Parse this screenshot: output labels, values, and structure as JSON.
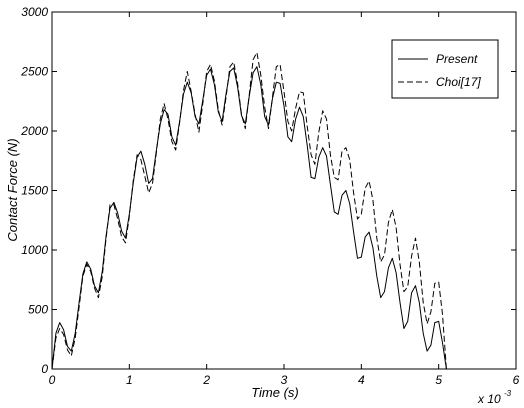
{
  "chart_data": {
    "type": "line",
    "title": "",
    "xlabel": "Time (s)",
    "ylabel": "Contact Force (N)",
    "x_multiplier_label": "x 10",
    "x_multiplier_exponent": "-3",
    "xlim": [
      0,
      6
    ],
    "ylim": [
      0,
      3000
    ],
    "x_ticks": [
      0,
      1,
      2,
      3,
      4,
      5,
      6
    ],
    "y_ticks": [
      0,
      500,
      1000,
      1500,
      2000,
      2500,
      3000
    ],
    "x_tick_labels": [
      "0",
      "1",
      "2",
      "3",
      "4",
      "5",
      "6"
    ],
    "y_tick_labels": [
      "0",
      "500",
      "1000",
      "1500",
      "2000",
      "2500",
      "3000"
    ],
    "grid": false,
    "legend_position": "top-right",
    "series": [
      {
        "name": "Present",
        "style": "solid",
        "color": "#000000",
        "x": [
          0,
          0.05,
          0.1,
          0.15,
          0.2,
          0.25,
          0.3,
          0.35,
          0.4,
          0.45,
          0.5,
          0.55,
          0.6,
          0.65,
          0.7,
          0.75,
          0.8,
          0.85,
          0.9,
          0.95,
          1.0,
          1.05,
          1.1,
          1.15,
          1.2,
          1.25,
          1.3,
          1.35,
          1.4,
          1.45,
          1.5,
          1.55,
          1.6,
          1.65,
          1.7,
          1.75,
          1.8,
          1.85,
          1.9,
          1.95,
          2.0,
          2.05,
          2.1,
          2.15,
          2.2,
          2.25,
          2.3,
          2.35,
          2.4,
          2.45,
          2.5,
          2.55,
          2.6,
          2.65,
          2.7,
          2.75,
          2.8,
          2.85,
          2.9,
          2.95,
          3.0,
          3.05,
          3.1,
          3.15,
          3.2,
          3.25,
          3.3,
          3.35,
          3.4,
          3.45,
          3.5,
          3.55,
          3.6,
          3.65,
          3.7,
          3.75,
          3.8,
          3.85,
          3.9,
          3.95,
          4.0,
          4.05,
          4.1,
          4.15,
          4.2,
          4.25,
          4.3,
          4.35,
          4.4,
          4.45,
          4.5,
          4.55,
          4.6,
          4.65,
          4.7,
          4.75,
          4.8,
          4.85,
          4.9,
          4.95,
          5.0,
          5.05,
          5.1
        ],
        "y": [
          0,
          300,
          390,
          330,
          190,
          150,
          300,
          560,
          800,
          900,
          840,
          700,
          640,
          820,
          1120,
          1350,
          1400,
          1310,
          1160,
          1100,
          1300,
          1560,
          1780,
          1830,
          1720,
          1560,
          1600,
          1840,
          2060,
          2180,
          2140,
          1950,
          1880,
          2080,
          2310,
          2410,
          2320,
          2120,
          2060,
          2260,
          2470,
          2520,
          2390,
          2160,
          2080,
          2310,
          2500,
          2530,
          2370,
          2130,
          2060,
          2290,
          2490,
          2540,
          2390,
          2120,
          2050,
          2270,
          2410,
          2400,
          2210,
          1950,
          1910,
          2100,
          2200,
          2120,
          1880,
          1610,
          1600,
          1780,
          1860,
          1790,
          1550,
          1320,
          1300,
          1460,
          1500,
          1390,
          1150,
          930,
          940,
          1110,
          1150,
          1020,
          780,
          600,
          650,
          850,
          930,
          810,
          560,
          340,
          400,
          640,
          700,
          560,
          300,
          150,
          200,
          390,
          400,
          220,
          0
        ]
      },
      {
        "name": "Choi[17]",
        "style": "dashed",
        "color": "#000000",
        "x": [
          0,
          0.05,
          0.1,
          0.15,
          0.2,
          0.25,
          0.3,
          0.35,
          0.4,
          0.45,
          0.5,
          0.55,
          0.6,
          0.65,
          0.7,
          0.75,
          0.8,
          0.85,
          0.9,
          0.95,
          1.0,
          1.05,
          1.1,
          1.15,
          1.2,
          1.25,
          1.3,
          1.35,
          1.4,
          1.45,
          1.5,
          1.55,
          1.6,
          1.65,
          1.7,
          1.75,
          1.8,
          1.85,
          1.9,
          1.95,
          2.0,
          2.05,
          2.1,
          2.15,
          2.2,
          2.25,
          2.3,
          2.35,
          2.4,
          2.45,
          2.5,
          2.55,
          2.6,
          2.65,
          2.7,
          2.75,
          2.8,
          2.85,
          2.9,
          2.95,
          3.0,
          3.05,
          3.1,
          3.15,
          3.2,
          3.25,
          3.3,
          3.35,
          3.4,
          3.45,
          3.5,
          3.55,
          3.6,
          3.65,
          3.7,
          3.75,
          3.8,
          3.85,
          3.9,
          3.95,
          4.0,
          4.05,
          4.1,
          4.15,
          4.2,
          4.25,
          4.3,
          4.35,
          4.4,
          4.45,
          4.5,
          4.55,
          4.6,
          4.65,
          4.7,
          4.75,
          4.8,
          4.85,
          4.9,
          4.95,
          5.0,
          5.05,
          5.1
        ],
        "y": [
          0,
          260,
          340,
          290,
          160,
          110,
          260,
          520,
          780,
          880,
          820,
          680,
          600,
          780,
          1100,
          1380,
          1380,
          1260,
          1110,
          1060,
          1280,
          1580,
          1800,
          1760,
          1620,
          1480,
          1560,
          1820,
          2100,
          2230,
          2100,
          1910,
          1840,
          2070,
          2340,
          2500,
          2330,
          2140,
          1990,
          2230,
          2500,
          2560,
          2420,
          2180,
          2050,
          2280,
          2540,
          2580,
          2400,
          2140,
          2020,
          2300,
          2600,
          2660,
          2470,
          2200,
          2020,
          2280,
          2540,
          2560,
          2330,
          2080,
          2000,
          2190,
          2330,
          2320,
          2040,
          1800,
          1720,
          1990,
          2170,
          2100,
          1800,
          1610,
          1590,
          1830,
          1860,
          1760,
          1480,
          1260,
          1300,
          1520,
          1580,
          1420,
          1100,
          900,
          960,
          1230,
          1340,
          1190,
          880,
          650,
          690,
          950,
          1100,
          900,
          560,
          380,
          480,
          720,
          730,
          460,
          0
        ]
      }
    ]
  }
}
